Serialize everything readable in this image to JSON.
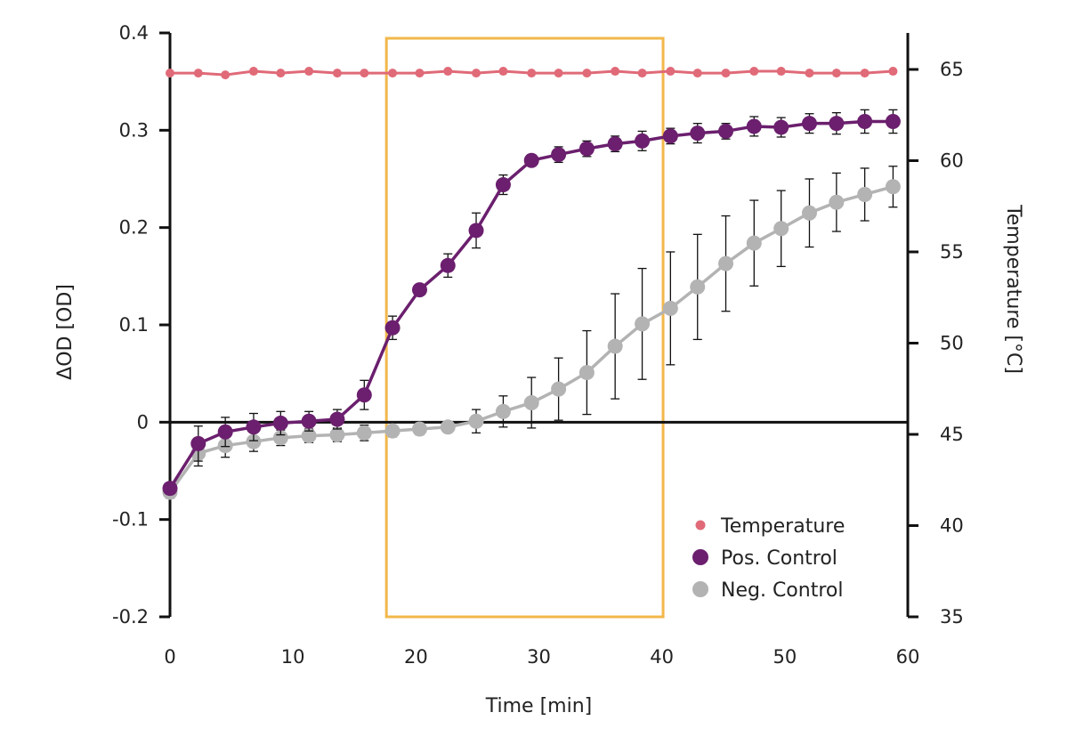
{
  "chart_data": {
    "type": "line",
    "xlabel": "Time [min]",
    "ylabel": "ΔOD [OD]",
    "y2label": "Temperature [°C]",
    "xlim": [
      0,
      60
    ],
    "ylim": [
      -0.2,
      0.4
    ],
    "y2lim": [
      35,
      67
    ],
    "xticks": [
      0,
      10,
      20,
      30,
      40,
      50,
      60
    ],
    "yticks": [
      -0.2,
      -0.1,
      0,
      0.1,
      0.2,
      0.3,
      0.4
    ],
    "ytick_labels": [
      "-0.2",
      "-0.1",
      "0",
      "0.1",
      "0.2",
      "0.3",
      "0.4"
    ],
    "y2ticks": [
      35,
      40,
      45,
      50,
      55,
      60,
      65
    ],
    "grid": false,
    "legend_position": "bottom-right",
    "highlight_region": {
      "x": [
        17.6,
        40.1
      ],
      "color": "#f2b84b"
    },
    "series": [
      {
        "name": "Temperature",
        "axis": "right",
        "color": "#e06a78",
        "marker": "small",
        "x": [
          0,
          2.3,
          4.5,
          6.8,
          9,
          11.3,
          13.6,
          15.8,
          18.1,
          20.3,
          22.6,
          24.9,
          27.1,
          29.4,
          31.6,
          33.9,
          36.2,
          38.4,
          40.7,
          42.9,
          45.2,
          47.5,
          49.7,
          52,
          54.2,
          56.5,
          58.8
        ],
        "values": [
          64.8,
          64.8,
          64.7,
          64.9,
          64.8,
          64.9,
          64.8,
          64.8,
          64.8,
          64.8,
          64.9,
          64.8,
          64.9,
          64.8,
          64.8,
          64.8,
          64.9,
          64.8,
          64.9,
          64.8,
          64.8,
          64.9,
          64.9,
          64.8,
          64.8,
          64.8,
          64.9
        ]
      },
      {
        "name": "Pos. Control",
        "axis": "left",
        "color": "#6b1f6e",
        "marker": "large",
        "x": [
          0,
          2.3,
          4.5,
          6.8,
          9,
          11.3,
          13.6,
          15.8,
          18.1,
          20.3,
          22.6,
          24.9,
          27.1,
          29.4,
          31.6,
          33.9,
          36.2,
          38.4,
          40.7,
          42.9,
          45.2,
          47.5,
          49.7,
          52,
          54.2,
          56.5,
          58.8
        ],
        "values": [
          -0.068,
          -0.022,
          -0.01,
          -0.005,
          -0.001,
          0.001,
          0.003,
          0.028,
          0.097,
          0.136,
          0.161,
          0.197,
          0.244,
          0.269,
          0.275,
          0.281,
          0.286,
          0.289,
          0.294,
          0.297,
          0.299,
          0.304,
          0.303,
          0.307,
          0.307,
          0.309,
          0.309
        ],
        "errors": [
          0.004,
          0.018,
          0.015,
          0.014,
          0.012,
          0.01,
          0.01,
          0.015,
          0.012,
          0.004,
          0.012,
          0.018,
          0.01,
          0.004,
          0.008,
          0.008,
          0.008,
          0.01,
          0.008,
          0.01,
          0.008,
          0.01,
          0.01,
          0.01,
          0.011,
          0.012,
          0.012
        ]
      },
      {
        "name": "Neg. Control",
        "axis": "left",
        "color": "#b3b3b3",
        "marker": "large",
        "x": [
          0,
          2.3,
          4.5,
          6.8,
          9,
          11.3,
          13.6,
          15.8,
          18.1,
          20.3,
          22.6,
          24.9,
          27.1,
          29.4,
          31.6,
          33.9,
          36.2,
          38.4,
          40.7,
          42.9,
          45.2,
          47.5,
          49.7,
          52,
          54.2,
          56.5,
          58.8
        ],
        "values": [
          -0.072,
          -0.032,
          -0.024,
          -0.02,
          -0.016,
          -0.014,
          -0.013,
          -0.011,
          -0.009,
          -0.007,
          -0.005,
          0.001,
          0.011,
          0.02,
          0.034,
          0.051,
          0.078,
          0.101,
          0.117,
          0.139,
          0.163,
          0.184,
          0.199,
          0.215,
          0.226,
          0.234,
          0.242
        ],
        "errors": [
          0.006,
          0.013,
          0.012,
          0.01,
          0.008,
          0.007,
          0.007,
          0.008,
          0.006,
          0.006,
          0.005,
          0.012,
          0.016,
          0.026,
          0.032,
          0.043,
          0.054,
          0.057,
          0.058,
          0.054,
          0.049,
          0.044,
          0.039,
          0.035,
          0.03,
          0.027,
          0.021
        ]
      }
    ]
  }
}
